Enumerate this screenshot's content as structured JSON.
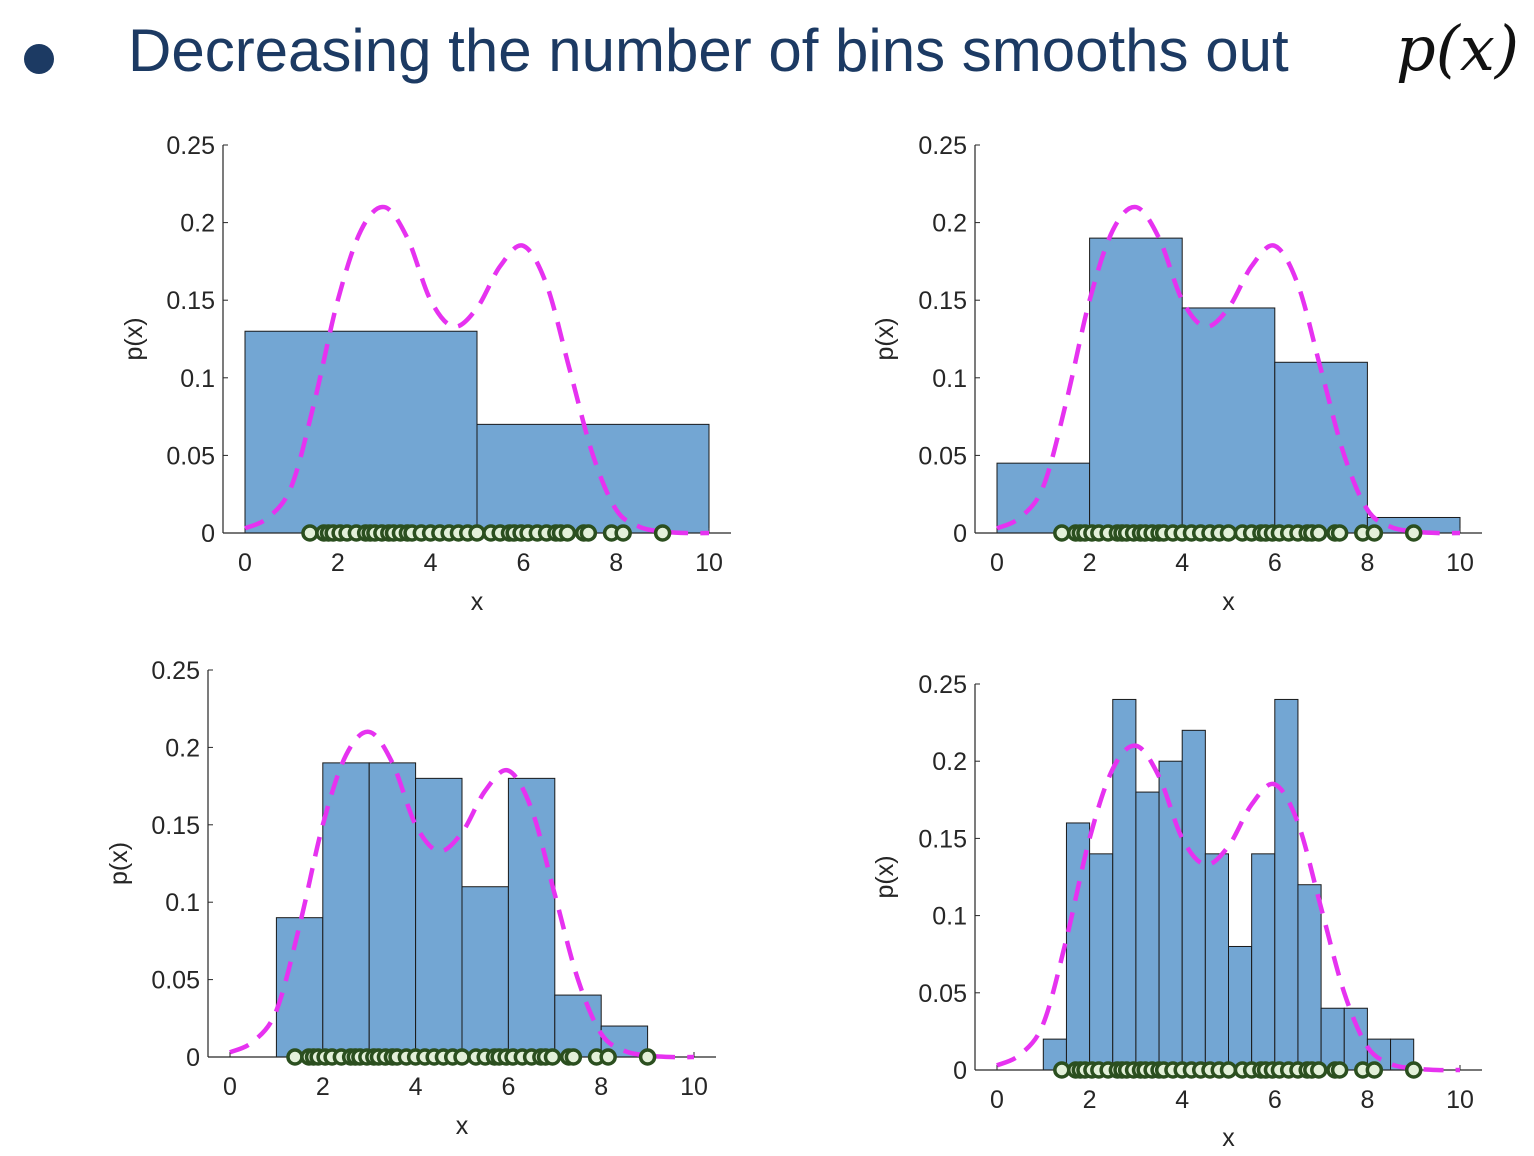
{
  "heading": {
    "text": "Decreasing the number of bins smooths out",
    "math": "p(x)"
  },
  "colors": {
    "bar_fill": "#73a6d3",
    "bar_edge": "#1a1a1a",
    "density_line": "#e632f0",
    "marker_edge": "#2b4f1f",
    "marker_fill": "#e3f0d9",
    "heading_text": "#1c3a63"
  },
  "icons": {
    "bullet": "filled-circle-bullet-icon",
    "sample": "circle-marker-icon"
  },
  "samples": [
    1.4,
    1.7,
    1.8,
    1.9,
    2.05,
    2.2,
    2.4,
    2.6,
    2.7,
    2.8,
    2.95,
    3.1,
    3.2,
    3.35,
    3.5,
    3.6,
    3.8,
    4.0,
    4.2,
    4.4,
    4.6,
    4.8,
    5.0,
    5.3,
    5.5,
    5.7,
    5.8,
    5.95,
    6.1,
    6.3,
    6.5,
    6.7,
    6.8,
    6.95,
    7.3,
    7.4,
    7.9,
    8.15,
    9.0
  ],
  "density": {
    "x": [
      0,
      0.5,
      1,
      1.5,
      2,
      2.5,
      3,
      3.5,
      4,
      4.5,
      5,
      5.5,
      6,
      6.5,
      7,
      7.5,
      8,
      8.5,
      9,
      9.5,
      10
    ],
    "y": [
      0.003,
      0.01,
      0.03,
      0.085,
      0.15,
      0.195,
      0.21,
      0.19,
      0.15,
      0.133,
      0.145,
      0.172,
      0.185,
      0.16,
      0.105,
      0.05,
      0.015,
      0.004,
      0.001,
      0,
      0
    ]
  },
  "chart_data": [
    {
      "type": "bar",
      "panel": "top-left",
      "bin_edges": [
        0,
        5,
        10
      ],
      "values": [
        0.13,
        0.07
      ],
      "xlabel": "x",
      "ylabel": "p(x)",
      "xlim": [
        0,
        10
      ],
      "ylim": [
        0,
        0.25
      ],
      "xticks": [
        "0",
        "2",
        "4",
        "6",
        "8",
        "10"
      ],
      "yticks": [
        "0",
        "0.05",
        "0.1",
        "0.15",
        "0.2",
        "0.25"
      ]
    },
    {
      "type": "bar",
      "panel": "top-right",
      "bin_edges": [
        0,
        2,
        4,
        6,
        8,
        10
      ],
      "values": [
        0.045,
        0.19,
        0.145,
        0.11,
        0.01
      ],
      "xlabel": "x",
      "ylabel": "p(x)",
      "xlim": [
        0,
        10
      ],
      "ylim": [
        0,
        0.25
      ],
      "xticks": [
        "0",
        "2",
        "4",
        "6",
        "8",
        "10"
      ],
      "yticks": [
        "0",
        "0.05",
        "0.1",
        "0.15",
        "0.2",
        "0.25"
      ]
    },
    {
      "type": "bar",
      "panel": "bottom-left",
      "bin_edges": [
        1,
        2,
        3,
        4,
        5,
        6,
        7,
        8,
        9
      ],
      "values": [
        0.09,
        0.19,
        0.19,
        0.18,
        0.11,
        0.18,
        0.04,
        0.02
      ],
      "xlabel": "x",
      "ylabel": "p(x)",
      "xlim": [
        0,
        10
      ],
      "ylim": [
        0,
        0.25
      ],
      "xticks": [
        "0",
        "2",
        "4",
        "6",
        "8",
        "10"
      ],
      "yticks": [
        "0",
        "0.05",
        "0.1",
        "0.15",
        "0.2",
        "0.25"
      ]
    },
    {
      "type": "bar",
      "panel": "bottom-right",
      "bin_edges": [
        1,
        1.5,
        2,
        2.5,
        3,
        3.5,
        4,
        4.5,
        5,
        5.5,
        6,
        6.5,
        7,
        7.5,
        8,
        8.5,
        9
      ],
      "values": [
        0.02,
        0.16,
        0.14,
        0.24,
        0.18,
        0.2,
        0.22,
        0.14,
        0.08,
        0.14,
        0.24,
        0.12,
        0.04,
        0.04,
        0.02,
        0.02
      ],
      "xlabel": "x",
      "ylabel": "p(x)",
      "xlim": [
        0,
        10
      ],
      "ylim": [
        0,
        0.25
      ],
      "xticks": [
        "0",
        "2",
        "4",
        "6",
        "8",
        "10"
      ],
      "yticks": [
        "0",
        "0.05",
        "0.1",
        "0.15",
        "0.2",
        "0.25"
      ]
    }
  ]
}
